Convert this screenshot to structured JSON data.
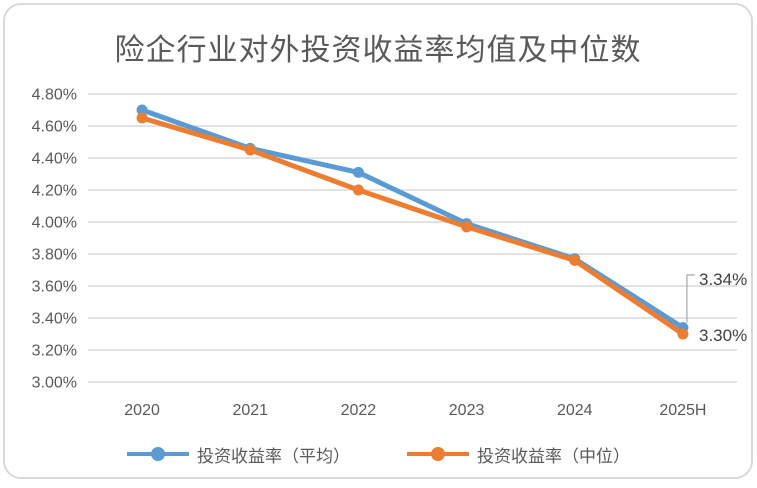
{
  "title": "险企行业对外投资收益率均值及中位数",
  "chart_data": {
    "type": "line",
    "categories": [
      "2020",
      "2021",
      "2022",
      "2023",
      "2024",
      "2025H"
    ],
    "series": [
      {
        "name": "投资收益率（平均）",
        "color": "#5B9BD5",
        "values": [
          4.7,
          4.46,
          4.31,
          3.99,
          3.77,
          3.34
        ]
      },
      {
        "name": "投资收益率（中位）",
        "color": "#ED7D31",
        "values": [
          4.65,
          4.45,
          4.2,
          3.97,
          3.76,
          3.3
        ]
      }
    ],
    "ylim": [
      3.0,
      4.8
    ],
    "yticks": [
      {
        "value": 4.8,
        "label": "4.80%"
      },
      {
        "value": 4.6,
        "label": "4.60%"
      },
      {
        "value": 4.4,
        "label": "4.40%"
      },
      {
        "value": 4.2,
        "label": "4.20%"
      },
      {
        "value": 4.0,
        "label": "4.00%"
      },
      {
        "value": 3.8,
        "label": "3.80%"
      },
      {
        "value": 3.6,
        "label": "3.60%"
      },
      {
        "value": 3.4,
        "label": "3.40%"
      },
      {
        "value": 3.2,
        "label": "3.20%"
      },
      {
        "value": 3.0,
        "label": "3.00%"
      }
    ],
    "grid": true,
    "legend_position": "bottom",
    "annotations": [
      {
        "text": "3.34%",
        "series": 0,
        "leader": true
      },
      {
        "text": "3.30%",
        "series": 1,
        "leader": false
      }
    ]
  },
  "colors": {
    "gridline": "#d9d9d9",
    "axis_text": "#595959",
    "data_label_text": "#404040",
    "leader_line": "#a6a6a6",
    "card_border": "#d9d9d9"
  }
}
